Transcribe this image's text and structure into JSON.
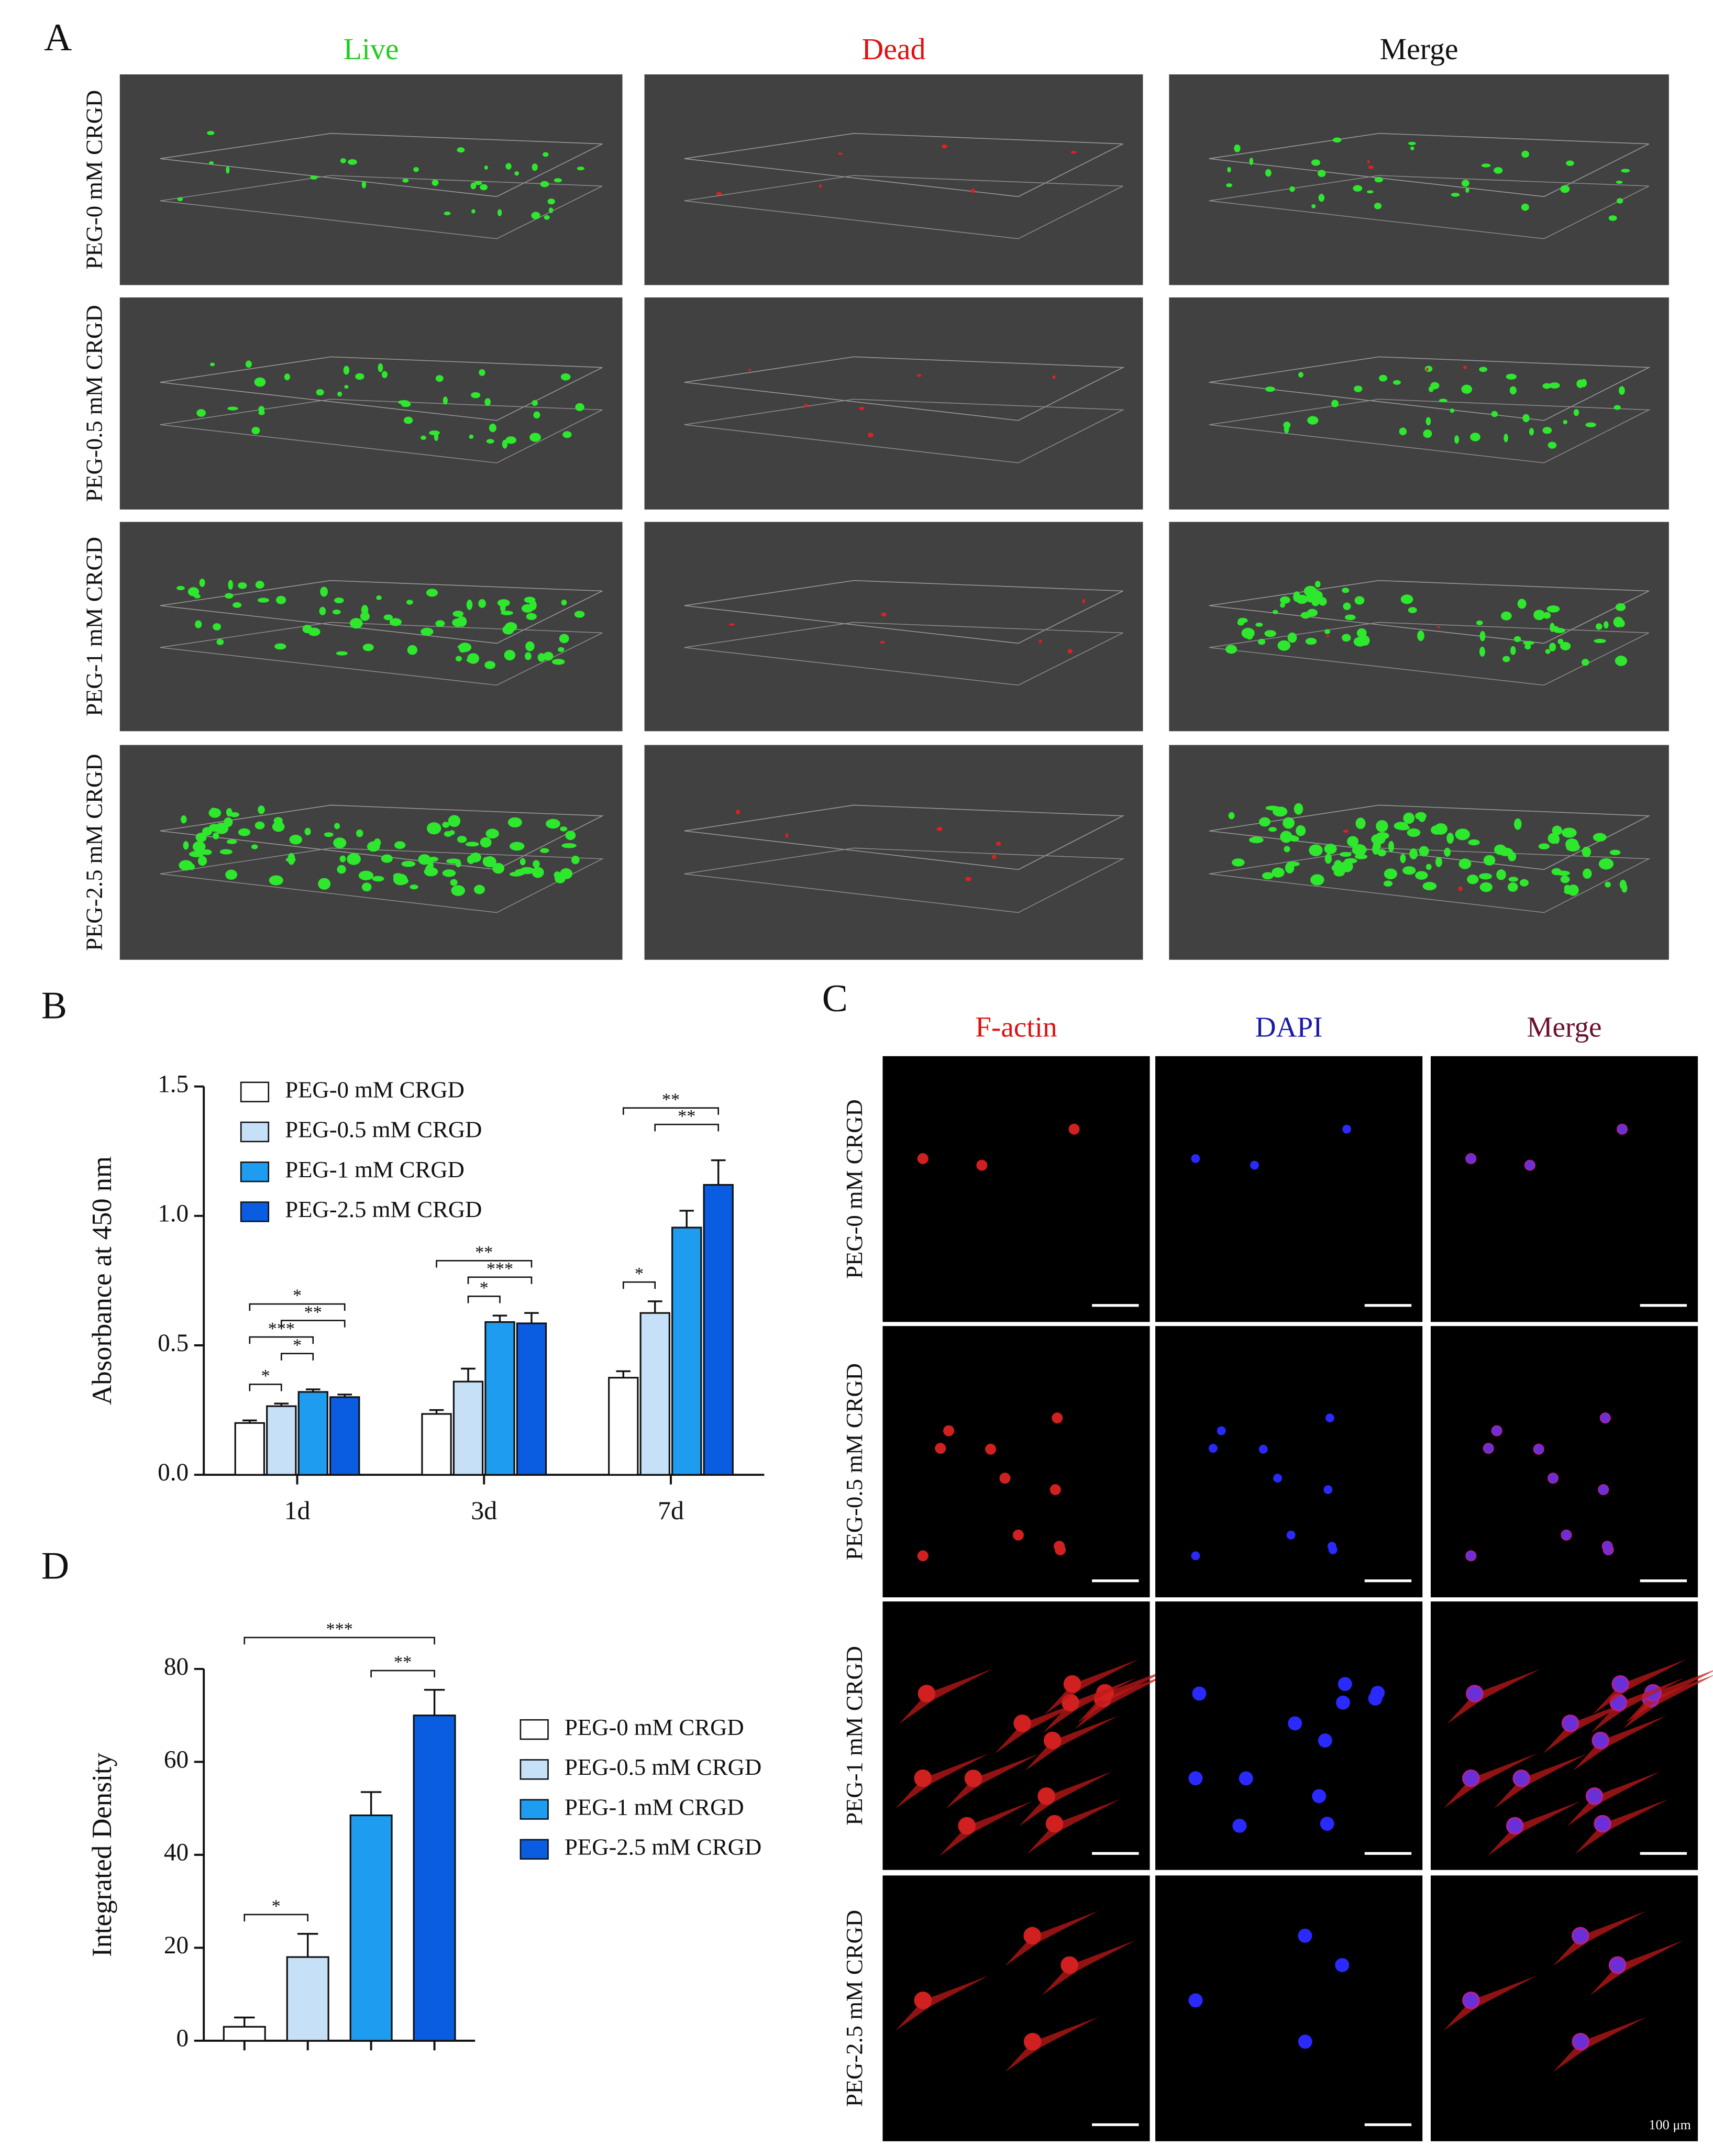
{
  "panels": {
    "A": {
      "label": "A",
      "columns": [
        "Live",
        "Dead",
        "Merge"
      ],
      "rows": [
        "PEG-0 mM CRGD",
        "PEG-0.5 mM CRGD",
        "PEG-1 mM CRGD",
        "PEG-2.5 mM CRGD"
      ]
    },
    "C": {
      "label": "C",
      "columns": [
        "F-actin",
        "DAPI",
        "Merge"
      ],
      "rows": [
        "PEG-0 mM CRGD",
        "PEG-0.5 mM CRGD",
        "PEG-1 mM CRGD",
        "PEG-2.5 mM CRGD"
      ],
      "scale_bar": "100 μm"
    }
  },
  "chart_data": [
    {
      "panel": "B",
      "type": "bar",
      "ylabel": "Absorbance at 450 nm",
      "categories": [
        "1d",
        "3d",
        "7d"
      ],
      "series": [
        {
          "name": "PEG-0 mM CRGD",
          "color": "#ffffff",
          "values": [
            0.2,
            0.235,
            0.375
          ],
          "errors": [
            0.01,
            0.015,
            0.025
          ]
        },
        {
          "name": "PEG-0.5 mM CRGD",
          "color": "#c6e0f8",
          "values": [
            0.265,
            0.36,
            0.625
          ],
          "errors": [
            0.01,
            0.05,
            0.045
          ]
        },
        {
          "name": "PEG-1 mM CRGD",
          "color": "#1e9cf0",
          "values": [
            0.32,
            0.59,
            0.955
          ],
          "errors": [
            0.01,
            0.025,
            0.065
          ]
        },
        {
          "name": "PEG-2.5 mM CRGD",
          "color": "#0a5ce0",
          "values": [
            0.3,
            0.585,
            1.12
          ],
          "errors": [
            0.01,
            0.04,
            0.095
          ]
        }
      ],
      "ylim": [
        0,
        1.5
      ],
      "yticks": [
        {
          "value": 0,
          "label": "0.0"
        },
        0.5,
        {
          "value": 1,
          "label": "1.0"
        },
        1.5
      ],
      "annotations": [
        {
          "text": "*",
          "group": 0,
          "from": 0,
          "to": 1
        },
        {
          "text": "*",
          "group": 0,
          "from": 1,
          "to": 2
        },
        {
          "text": "***",
          "group": 0,
          "from": 0,
          "to": 2
        },
        {
          "text": "**",
          "group": 0,
          "from": 1,
          "to": 3
        },
        {
          "text": "*",
          "group": 0,
          "from": 0,
          "to": 3
        },
        {
          "text": "*",
          "group": 1,
          "from": 1,
          "to": 2
        },
        {
          "text": "***",
          "group": 1,
          "from": 1,
          "to": 3
        },
        {
          "text": "**",
          "group": 1,
          "from": 0,
          "to": 3
        },
        {
          "text": "*",
          "group": 2,
          "from": 0,
          "to": 1
        },
        {
          "text": "**",
          "group": 2,
          "from": 1,
          "to": 3
        },
        {
          "text": "**",
          "group": 2,
          "from": 0,
          "to": 3
        }
      ]
    },
    {
      "panel": "D",
      "type": "bar",
      "ylabel": "Integrated Density",
      "categories": [
        null
      ],
      "series": [
        {
          "name": "PEG-0 mM CRGD",
          "color": "#ffffff",
          "values": [
            3
          ],
          "errors": [
            2
          ]
        },
        {
          "name": "PEG-0.5 mM CRGD",
          "color": "#c6e0f8",
          "values": [
            18
          ],
          "errors": [
            5
          ]
        },
        {
          "name": "PEG-1 mM CRGD",
          "color": "#1e9cf0",
          "values": [
            48.5
          ],
          "errors": [
            5
          ]
        },
        {
          "name": "PEG-2.5 mM CRGD",
          "color": "#0a5ce0",
          "values": [
            70
          ],
          "errors": [
            5.5
          ]
        }
      ],
      "ylim": [
        0,
        80
      ],
      "yticks": [
        0,
        20,
        40,
        60,
        80
      ],
      "annotations": [
        {
          "text": "*",
          "group": 0,
          "from": 0,
          "to": 1
        },
        {
          "text": "**",
          "group": 0,
          "from": 2,
          "to": 3
        },
        {
          "text": "***",
          "group": 0,
          "from": 0,
          "to": 3
        }
      ]
    }
  ]
}
